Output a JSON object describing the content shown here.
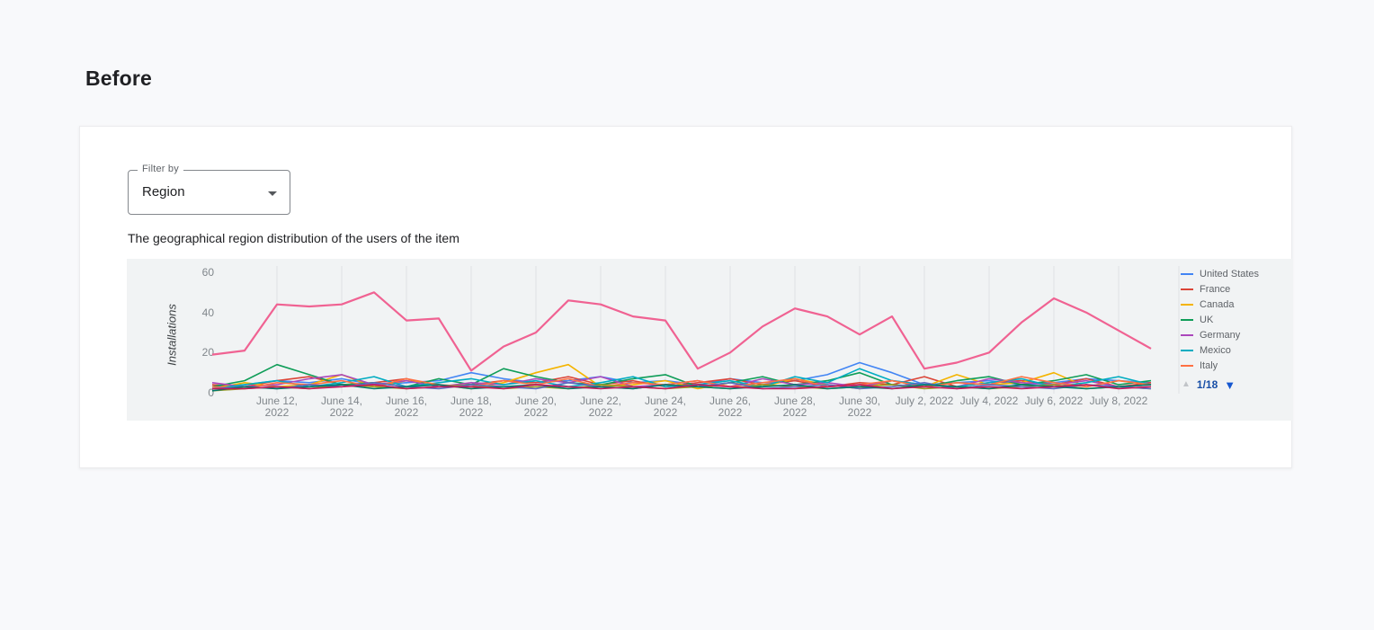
{
  "page": {
    "heading": "Before"
  },
  "filter": {
    "label": "Filter by",
    "value": "Region"
  },
  "description": "The geographical region distribution of the users of the item",
  "chart_data": {
    "type": "line",
    "title": "",
    "xlabel": "",
    "ylabel": "Installations",
    "ylim": [
      0,
      60
    ],
    "yticks": [
      0,
      20,
      40,
      60
    ],
    "grid": "vertical",
    "legend_position": "right",
    "x_ticks": [
      {
        "index": 2,
        "label": "June 12,\n2022"
      },
      {
        "index": 4,
        "label": "June 14,\n2022"
      },
      {
        "index": 6,
        "label": "June 16,\n2022"
      },
      {
        "index": 8,
        "label": "June 18,\n2022"
      },
      {
        "index": 10,
        "label": "June 20,\n2022"
      },
      {
        "index": 12,
        "label": "June 22,\n2022"
      },
      {
        "index": 14,
        "label": "June 24,\n2022"
      },
      {
        "index": 16,
        "label": "June 26,\n2022"
      },
      {
        "index": 18,
        "label": "June 28,\n2022"
      },
      {
        "index": 20,
        "label": "June 30,\n2022"
      },
      {
        "index": 22,
        "label": "July 2, 2022"
      },
      {
        "index": 24,
        "label": "July 4, 2022"
      },
      {
        "index": 26,
        "label": "July 6, 2022"
      },
      {
        "index": 28,
        "label": "July 8, 2022"
      }
    ],
    "series": [
      {
        "label": "United States",
        "color": "#4285F4",
        "emphasis": false,
        "values": [
          3,
          4,
          6,
          5,
          7,
          4,
          5,
          6,
          10,
          7,
          5,
          6,
          8,
          5,
          6,
          4,
          7,
          5,
          6,
          9,
          15,
          10,
          4,
          5,
          6,
          4,
          5,
          7,
          6,
          5
        ]
      },
      {
        "label": "France",
        "color": "#DB4437",
        "emphasis": false,
        "values": [
          4,
          3,
          6,
          8,
          4,
          5,
          7,
          3,
          4,
          6,
          5,
          8,
          4,
          6,
          3,
          5,
          7,
          4,
          6,
          3,
          5,
          4,
          8,
          3,
          5,
          6,
          4,
          7,
          3,
          5
        ]
      },
      {
        "label": "Canada",
        "color": "#F4B400",
        "emphasis": false,
        "values": [
          2,
          5,
          3,
          4,
          9,
          3,
          6,
          4,
          2,
          5,
          10,
          14,
          3,
          4,
          6,
          2,
          5,
          3,
          7,
          4,
          2,
          6,
          3,
          9,
          4,
          5,
          10,
          3,
          6,
          4
        ]
      },
      {
        "label": "UK",
        "color": "#0F9D58",
        "emphasis": false,
        "values": [
          3,
          6,
          14,
          9,
          4,
          5,
          3,
          7,
          4,
          12,
          8,
          5,
          4,
          7,
          9,
          3,
          5,
          8,
          4,
          6,
          10,
          4,
          3,
          6,
          8,
          4,
          6,
          9,
          4,
          6
        ]
      },
      {
        "label": "Germany",
        "color": "#AB47BC",
        "emphasis": false,
        "values": [
          5,
          3,
          4,
          7,
          9,
          4,
          6,
          3,
          5,
          4,
          7,
          5,
          8,
          3,
          4,
          6,
          3,
          7,
          4,
          5,
          3,
          6,
          4,
          3,
          7,
          5,
          4,
          6,
          3,
          4
        ]
      },
      {
        "label": "Mexico",
        "color": "#00ACC1",
        "emphasis": false,
        "values": [
          2,
          4,
          6,
          3,
          5,
          8,
          3,
          5,
          7,
          4,
          6,
          3,
          5,
          8,
          3,
          4,
          6,
          3,
          8,
          5,
          12,
          6,
          4,
          3,
          5,
          7,
          3,
          5,
          8,
          4
        ]
      },
      {
        "label": "Italy",
        "color": "#FF7043",
        "emphasis": false,
        "values": [
          3,
          2,
          5,
          4,
          6,
          3,
          7,
          4,
          3,
          6,
          4,
          7,
          3,
          5,
          4,
          6,
          3,
          5,
          7,
          3,
          4,
          6,
          3,
          5,
          4,
          8,
          5,
          3,
          6,
          4
        ]
      },
      {
        "label": "",
        "color": "#9E9D24",
        "emphasis": false,
        "values": [
          1,
          2,
          3,
          2,
          4,
          3,
          2,
          3,
          4,
          2,
          3,
          2,
          4,
          3,
          2,
          3,
          2,
          4,
          3,
          2,
          3,
          4,
          2,
          3,
          2,
          3,
          4,
          2,
          3,
          2
        ]
      },
      {
        "label": "",
        "color": "#5C6BC0",
        "emphasis": false,
        "values": [
          2,
          3,
          2,
          4,
          3,
          5,
          3,
          2,
          4,
          3,
          2,
          5,
          3,
          2,
          4,
          3,
          5,
          2,
          3,
          4,
          2,
          3,
          5,
          2,
          4,
          3,
          2,
          4,
          3,
          2
        ]
      },
      {
        "label": "",
        "color": "#00796B",
        "emphasis": false,
        "values": [
          1,
          3,
          2,
          3,
          4,
          2,
          3,
          4,
          2,
          3,
          4,
          2,
          3,
          2,
          4,
          3,
          2,
          3,
          4,
          2,
          3,
          2,
          4,
          3,
          2,
          4,
          3,
          2,
          3,
          4
        ]
      },
      {
        "label": "",
        "color": "#C2185B",
        "emphasis": false,
        "values": [
          2,
          2,
          3,
          2,
          3,
          4,
          2,
          3,
          3,
          2,
          4,
          3,
          2,
          3,
          2,
          4,
          3,
          2,
          2,
          3,
          4,
          2,
          3,
          2,
          3,
          2,
          3,
          4,
          2,
          3
        ]
      },
      {
        "label": "",
        "color": "#F06292",
        "emphasis": true,
        "values": [
          19,
          21,
          44,
          43,
          44,
          50,
          36,
          37,
          11,
          23,
          30,
          46,
          44,
          38,
          36,
          12,
          20,
          33,
          42,
          38,
          29,
          38,
          12,
          15,
          20,
          35,
          47,
          40,
          31,
          22
        ]
      }
    ],
    "legend": {
      "items": [
        {
          "label": "United States",
          "color": "#4285F4"
        },
        {
          "label": "France",
          "color": "#DB4437"
        },
        {
          "label": "Canada",
          "color": "#F4B400"
        },
        {
          "label": "UK",
          "color": "#0F9D58"
        },
        {
          "label": "Germany",
          "color": "#AB47BC"
        },
        {
          "label": "Mexico",
          "color": "#00ACC1"
        },
        {
          "label": "Italy",
          "color": "#FF7043"
        }
      ],
      "page": "1/18",
      "prev_icon": "▲",
      "next_icon": "▼"
    }
  }
}
